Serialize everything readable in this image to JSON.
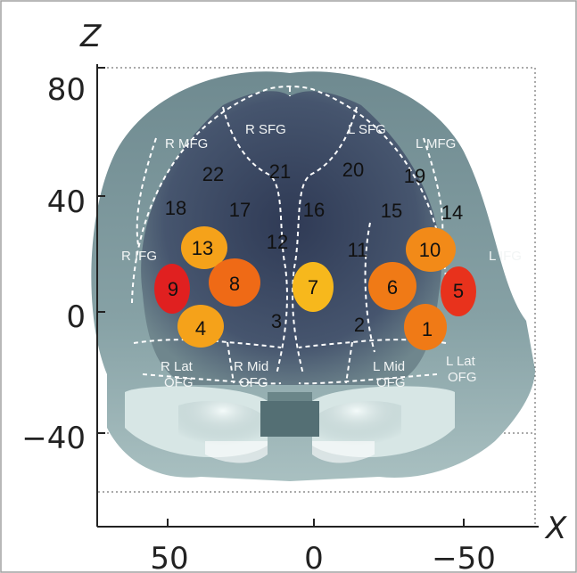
{
  "axes": {
    "z_label": "Z",
    "x_label": "X",
    "z_ticks": [
      "80",
      "40",
      "0",
      "−40"
    ],
    "x_ticks": [
      "50",
      "0",
      "−50"
    ]
  },
  "regions": {
    "r_sfg": "R SFG",
    "l_sfg": "L SFG",
    "r_mfg": "R MFG",
    "l_mfg": "L MFG",
    "r_ifg": "R IFG",
    "l_ifg": "L IFG",
    "r_lat_ofg_1": "R Lat",
    "r_lat_ofg_2": "OFG",
    "r_mid_ofg_1": "R Mid",
    "r_mid_ofg_2": "OFG",
    "l_mid_ofg_1": "L Mid",
    "l_mid_ofg_2": "OFG",
    "l_lat_ofg_1": "L Lat",
    "l_lat_ofg_2": "OFG"
  },
  "channels": [
    "1",
    "2",
    "3",
    "4",
    "5",
    "6",
    "7",
    "8",
    "9",
    "10",
    "11",
    "12",
    "13",
    "14",
    "15",
    "16",
    "17",
    "18",
    "19",
    "20",
    "21",
    "22"
  ],
  "active_channels": {
    "1": "#f07a16",
    "4": "#f5a21a",
    "5": "#e8321c",
    "6": "#f07a16",
    "7": "#f7b81c",
    "8": "#ef6a16",
    "9": "#e02020",
    "10": "#f28a18",
    "13": "#f5a21a"
  },
  "colors": {
    "head": "#7c969c",
    "inner": "#3e4d66",
    "dashed": "#ffffff",
    "frame": "#a0a0a0"
  }
}
